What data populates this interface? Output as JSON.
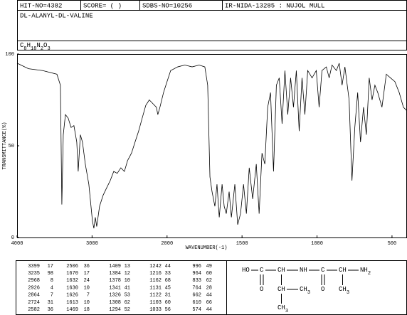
{
  "header": {
    "hit_no": "HIT-NO=4382",
    "score": "SCORE= (   )",
    "sdbs_no": "SDBS-NO=10256",
    "ir": "IR-NIDA-13285 : NUJOL MULL",
    "compound": "DL-ALANYL-DL-VALINE",
    "formula": "C8H18N2O3"
  },
  "chart_data": {
    "type": "line",
    "xlabel": "WAVENUMBER(-1)",
    "ylabel": "TRANSMITTANCE(%)",
    "color": "#000000",
    "x": [
      4000,
      3848,
      3659,
      3469,
      3422,
      3403,
      3384,
      3355,
      3318,
      3280,
      3242,
      3204,
      3185,
      3156,
      3128,
      3090,
      3043,
      2995,
      2976,
      2957,
      2938,
      2900,
      2853,
      2806,
      2758,
      2711,
      2664,
      2616,
      2569,
      2526,
      2474,
      2427,
      2379,
      2332,
      2284,
      2237,
      2190,
      2142,
      2123,
      2095,
      2047,
      2000,
      1976,
      1929,
      1881,
      1833,
      1786,
      1748,
      1729,
      1714,
      1700,
      1681,
      1667,
      1652,
      1633,
      1619,
      1605,
      1586,
      1571,
      1548,
      1529,
      1510,
      1490,
      1471,
      1452,
      1429,
      1405,
      1386,
      1367,
      1348,
      1329,
      1310,
      1290,
      1271,
      1252,
      1233,
      1214,
      1195,
      1176,
      1157,
      1138,
      1119,
      1100,
      1081,
      1062,
      1033,
      1005,
      986,
      967,
      938,
      919,
      900,
      871,
      852,
      833,
      814,
      786,
      767,
      748,
      729,
      710,
      690,
      671,
      652,
      633,
      614,
      595,
      567,
      538,
      510,
      481,
      452,
      424,
      400
    ],
    "values": [
      95,
      92,
      91,
      89,
      83,
      18,
      56,
      67,
      65,
      60,
      61,
      52,
      36,
      56,
      52,
      40,
      29,
      9,
      5,
      11,
      6,
      17,
      23,
      27,
      31,
      36,
      35,
      38,
      36,
      42,
      46,
      52,
      58,
      65,
      72,
      75,
      73,
      71,
      67,
      71,
      79,
      85,
      91,
      93,
      94,
      93,
      94,
      93,
      83,
      33,
      25,
      17,
      29,
      11,
      29,
      17,
      13,
      25,
      11,
      29,
      7,
      13,
      29,
      13,
      38,
      21,
      40,
      13,
      46,
      40,
      71,
      79,
      36,
      83,
      87,
      62,
      91,
      67,
      87,
      71,
      91,
      58,
      87,
      67,
      91,
      87,
      91,
      71,
      91,
      93,
      87,
      94,
      91,
      95,
      83,
      93,
      75,
      31,
      60,
      79,
      52,
      71,
      56,
      87,
      75,
      83,
      79,
      71,
      89,
      87,
      85,
      79,
      71,
      69
    ],
    "xlim": [
      4000,
      400
    ],
    "ylim": [
      0,
      100
    ],
    "xticks": [
      4000,
      3000,
      2000,
      1500,
      1000,
      500
    ],
    "yticks": [
      0,
      50,
      100
    ]
  },
  "peak_table": {
    "columns": [
      [
        [
          3399,
          17
        ],
        [
          3235,
          98
        ],
        [
          2968,
          8
        ],
        [
          2926,
          4
        ],
        [
          2864,
          7
        ],
        [
          2724,
          31
        ],
        [
          2582,
          36
        ]
      ],
      [
        [
          2506,
          36
        ],
        [
          1670,
          17
        ],
        [
          1632,
          24
        ],
        [
          1630,
          10
        ],
        [
          1626,
          7
        ],
        [
          1613,
          10
        ],
        [
          1469,
          18
        ]
      ],
      [
        [
          1409,
          13
        ],
        [
          1384,
          12
        ],
        [
          1378,
          10
        ],
        [
          1341,
          41
        ],
        [
          1326,
          53
        ],
        [
          1308,
          62
        ],
        [
          1294,
          52
        ]
      ],
      [
        [
          1242,
          44
        ],
        [
          1216,
          33
        ],
        [
          1162,
          68
        ],
        [
          1131,
          45
        ],
        [
          1122,
          31
        ],
        [
          1103,
          60
        ],
        [
          1033,
          56
        ]
      ],
      [
        [
          996,
          49
        ],
        [
          964,
          60
        ],
        [
          833,
          62
        ],
        [
          764,
          28
        ],
        [
          662,
          44
        ],
        [
          610,
          66
        ],
        [
          574,
          44
        ]
      ]
    ]
  },
  "structure": {
    "labels": [
      "HO",
      "C",
      "CH",
      "NH",
      "C",
      "CH",
      "NH2",
      "O",
      "CH",
      "CH3",
      "O",
      "CH3",
      "CH3"
    ]
  }
}
